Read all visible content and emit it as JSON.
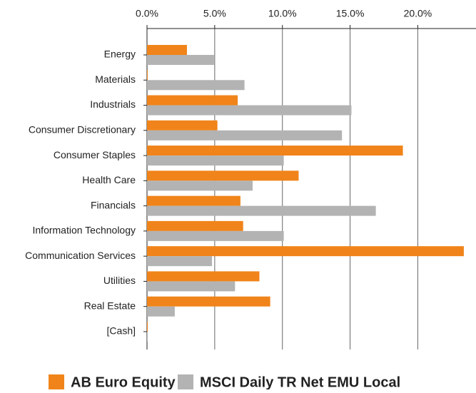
{
  "chart_data": {
    "type": "barh",
    "categories": [
      "Energy",
      "Materials",
      "Industrials",
      "Consumer Discretionary",
      "Consumer Staples",
      "Health Care",
      "Financials",
      "Information Technology",
      "Communication Services",
      "Utilities",
      "Real Estate",
      "[Cash]"
    ],
    "series": [
      {
        "name": "AB Euro Equity",
        "color": "#f0841a",
        "values": [
          2.95,
          0.05,
          6.7,
          5.2,
          18.9,
          11.2,
          6.9,
          7.1,
          23.4,
          8.3,
          9.1,
          0.05
        ]
      },
      {
        "name": "MSCI Daily TR Net EMU Local",
        "color": "#b3b3b3",
        "values": [
          4.95,
          7.2,
          15.1,
          14.4,
          10.1,
          7.8,
          16.9,
          10.1,
          4.8,
          6.5,
          2.05,
          0.05
        ]
      }
    ],
    "xlim": [
      0,
      24.3
    ],
    "xticks": [
      {
        "value": 0,
        "label": "0.0%"
      },
      {
        "value": 5,
        "label": "5.0%"
      },
      {
        "value": 10,
        "label": "10.0%"
      },
      {
        "value": 15,
        "label": "15.0%"
      },
      {
        "value": 20,
        "label": "20.0%"
      }
    ],
    "grid": true,
    "legend": "bottom"
  }
}
